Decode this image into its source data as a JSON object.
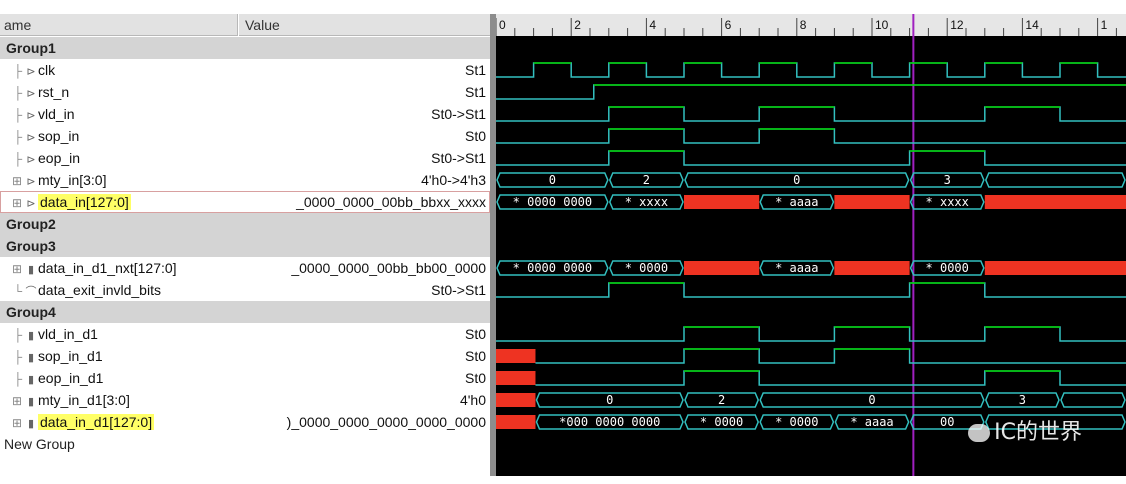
{
  "header": {
    "name": "ame",
    "value": "Value"
  },
  "rows": [
    {
      "kind": "group",
      "name": "Group1"
    },
    {
      "kind": "signal",
      "tree": "├",
      "icon": "⊳",
      "name": "clk",
      "value": "St1"
    },
    {
      "kind": "signal",
      "tree": "├",
      "icon": "⊳",
      "name": "rst_n",
      "value": "St1"
    },
    {
      "kind": "signal",
      "tree": "├",
      "icon": "⊳",
      "name": "vld_in",
      "value": "St0->St1"
    },
    {
      "kind": "signal",
      "tree": "├",
      "icon": "⊳",
      "name": "sop_in",
      "value": "St0"
    },
    {
      "kind": "signal",
      "tree": "├",
      "icon": "⊳",
      "name": "eop_in",
      "value": "St0->St1"
    },
    {
      "kind": "signal",
      "tree": "⊞",
      "icon": "⊳",
      "name": "mty_in[3:0]",
      "value": "4'h0->4'h3"
    },
    {
      "kind": "signal",
      "tree": "⊞",
      "icon": "⊳",
      "name": "data_in[127:0]",
      "value": "_0000_0000_00bb_bbxx_xxxx",
      "highlight": true,
      "selected": true
    },
    {
      "kind": "group",
      "name": "Group2"
    },
    {
      "kind": "group",
      "name": "Group3"
    },
    {
      "kind": "signal",
      "tree": "⊞",
      "icon": "▮",
      "name": "data_in_d1_nxt[127:0]",
      "value": "_0000_0000_00bb_bb00_0000"
    },
    {
      "kind": "signal",
      "tree": "└",
      "icon": "⌒",
      "name": "data_exit_invld_bits",
      "value": "St0->St1"
    },
    {
      "kind": "group",
      "name": "Group4"
    },
    {
      "kind": "signal",
      "tree": "├",
      "icon": "▮",
      "name": "vld_in_d1",
      "value": "St0"
    },
    {
      "kind": "signal",
      "tree": "├",
      "icon": "▮",
      "name": "sop_in_d1",
      "value": "St0"
    },
    {
      "kind": "signal",
      "tree": "├",
      "icon": "▮",
      "name": "eop_in_d1",
      "value": "St0"
    },
    {
      "kind": "signal",
      "tree": "⊞",
      "icon": "▮",
      "name": "mty_in_d1[3:0]",
      "value": "4'h0"
    },
    {
      "kind": "signal",
      "tree": "⊞",
      "icon": "▮",
      "name": "data_in_d1[127:0]",
      "value": ")_0000_0000_0000_0000_0000",
      "highlight": true
    },
    {
      "kind": "plain",
      "name": "New Group"
    }
  ],
  "timeline": {
    "ticks": [
      "0",
      "2",
      "4",
      "6",
      "8",
      "10",
      "12",
      "14",
      "1"
    ]
  },
  "colors": {
    "wave_green": "#00d000",
    "wave_cyan": "#33c0c0",
    "bus_red": "#ee3322",
    "cursor": "#a020c0",
    "ruler": "#e6e6e6"
  },
  "bus_labels": {
    "mty_in": [
      "0",
      "2",
      "0",
      "3"
    ],
    "data_in": [
      "* 0000 0000",
      "* xxxx",
      "* aaaa",
      "* xxxx"
    ],
    "data_in_d1_nxt": [
      "* 0000 0000",
      "* 0000",
      "* aaaa",
      "* 0000"
    ],
    "mty_in_d1": [
      "0",
      "2",
      "0",
      "3"
    ],
    "data_in_d1": [
      "*000 0000 0000",
      "* 0000",
      "* 0000",
      "* aaaa",
      "00"
    ]
  },
  "watermark": "IC的世界"
}
